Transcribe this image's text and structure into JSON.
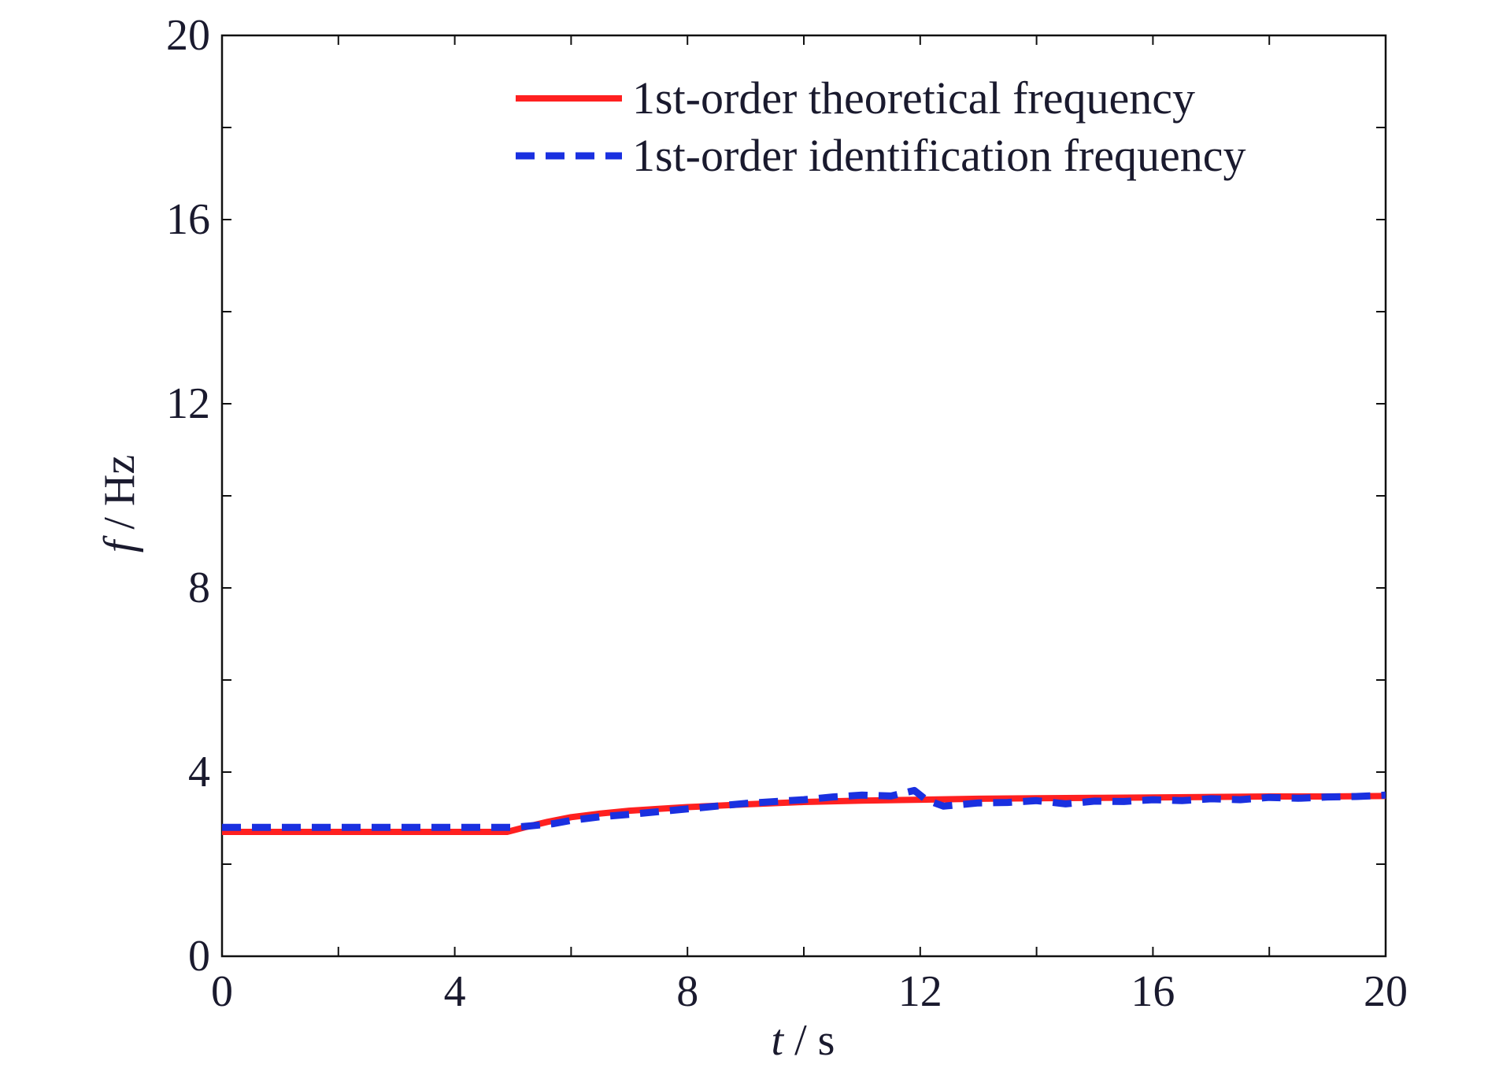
{
  "chart_data": {
    "type": "line",
    "title": "",
    "xlabel": {
      "var": "t",
      "sep": " / ",
      "unit": "s"
    },
    "ylabel": {
      "var": "f",
      "sep": " / ",
      "unit": "Hz"
    },
    "xlim": [
      0,
      20
    ],
    "ylim": [
      0,
      20
    ],
    "xticks": [
      "0",
      "4",
      "8",
      "12",
      "16",
      "20"
    ],
    "yticks": [
      "0",
      "4",
      "8",
      "12",
      "16",
      "20"
    ],
    "grid": false,
    "legend_position": "top-right",
    "series": [
      {
        "name": "1st-order theoretical frequency",
        "color": "#ff2020",
        "style": "solid",
        "x": [
          0,
          1,
          2,
          3,
          4,
          4.9,
          5.2,
          5.6,
          6,
          6.5,
          7,
          7.5,
          8,
          9,
          10,
          11,
          12,
          13,
          14,
          15,
          16,
          17,
          18,
          19,
          20
        ],
        "y": [
          2.7,
          2.7,
          2.7,
          2.7,
          2.7,
          2.7,
          2.8,
          2.92,
          3.02,
          3.1,
          3.16,
          3.2,
          3.24,
          3.3,
          3.35,
          3.38,
          3.4,
          3.42,
          3.43,
          3.44,
          3.45,
          3.46,
          3.47,
          3.47,
          3.48
        ]
      },
      {
        "name": "1st-order identification frequency",
        "color": "#1a30e0",
        "style": "dashed",
        "x": [
          0,
          1,
          2,
          3,
          4,
          5,
          5.3,
          5.7,
          6,
          6.5,
          7,
          7.5,
          8,
          9,
          10,
          10.5,
          11,
          11.5,
          11.9,
          12.1,
          12.4,
          13,
          13.5,
          14,
          14.5,
          15,
          15.5,
          16,
          16.5,
          17,
          17.5,
          18,
          18.5,
          19,
          19.5,
          20
        ],
        "y": [
          2.8,
          2.8,
          2.8,
          2.8,
          2.8,
          2.8,
          2.83,
          2.88,
          2.95,
          3.03,
          3.08,
          3.14,
          3.2,
          3.32,
          3.4,
          3.46,
          3.5,
          3.48,
          3.6,
          3.4,
          3.26,
          3.33,
          3.34,
          3.38,
          3.31,
          3.37,
          3.36,
          3.4,
          3.38,
          3.42,
          3.4,
          3.45,
          3.43,
          3.46,
          3.47,
          3.5
        ]
      }
    ]
  }
}
